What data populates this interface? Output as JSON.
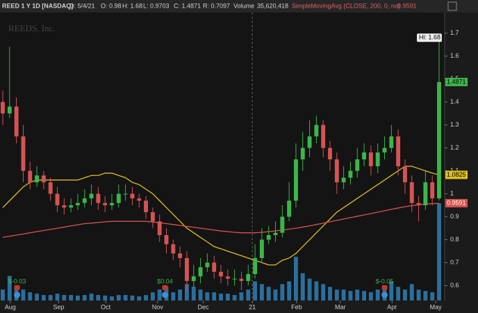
{
  "header": {
    "symbol": "REED 1 Y 1D [NASDAQ]",
    "date": "D: 5/4/21",
    "open": "O: 0.98",
    "high": "H: 1.68",
    "low": "L: 0.9703",
    "close": "C: 1.4871",
    "range": "R: 0.7097",
    "volume_title": "Volume",
    "volume": "35,620,418",
    "study": "SimpleMovingAvg (CLOSE, 200, 0, no)",
    "study_value": "0.9591"
  },
  "chart_data": {
    "type": "candlestick",
    "watermark": "REEDS, Inc.",
    "x": [
      0,
      1,
      2,
      3,
      4,
      5,
      6,
      7,
      8,
      9,
      10,
      11,
      12,
      13,
      14,
      15,
      16,
      17,
      18,
      19,
      20,
      21,
      22,
      23,
      24,
      25,
      26,
      27,
      28,
      29,
      30,
      31,
      32,
      33,
      34,
      35,
      36,
      37,
      38,
      39,
      40,
      41,
      42,
      43,
      44,
      45,
      46,
      47,
      48,
      49,
      50,
      51,
      52,
      53,
      54,
      55,
      56,
      57,
      58,
      59,
      60,
      61,
      62,
      63,
      64
    ],
    "open": [
      1.4,
      1.35,
      1.38,
      1.25,
      1.1,
      1.05,
      1.08,
      1.05,
      1.0,
      0.95,
      0.94,
      0.95,
      0.96,
      0.98,
      1.0,
      0.96,
      0.95,
      0.96,
      1.0,
      1.0,
      0.98,
      0.97,
      0.92,
      0.88,
      0.82,
      0.78,
      0.74,
      0.72,
      0.62,
      0.64,
      0.68,
      0.7,
      0.66,
      0.64,
      0.63,
      0.63,
      0.62,
      0.65,
      0.72,
      0.8,
      0.82,
      0.83,
      0.9,
      0.97,
      1.15,
      1.2,
      1.25,
      1.3,
      1.2,
      1.15,
      1.05,
      1.07,
      1.1,
      1.15,
      1.18,
      1.12,
      1.18,
      1.2,
      1.25,
      1.12,
      1.05,
      0.96,
      0.95,
      1.05,
      0.98
    ],
    "high": [
      1.45,
      1.64,
      1.42,
      1.3,
      1.14,
      1.12,
      1.1,
      1.07,
      1.03,
      0.98,
      0.98,
      1.0,
      1.02,
      1.04,
      1.03,
      0.99,
      1.0,
      1.04,
      1.04,
      1.03,
      1.0,
      0.99,
      0.94,
      0.91,
      0.85,
      0.8,
      0.77,
      0.75,
      0.69,
      0.72,
      0.74,
      0.73,
      0.69,
      0.67,
      0.67,
      0.66,
      0.69,
      0.78,
      0.85,
      0.86,
      0.88,
      0.95,
      1.05,
      1.22,
      1.27,
      1.32,
      1.34,
      1.32,
      1.23,
      1.18,
      1.12,
      1.14,
      1.2,
      1.22,
      1.21,
      1.22,
      1.25,
      1.3,
      1.28,
      1.15,
      1.08,
      0.99,
      1.1,
      1.08,
      1.68
    ],
    "low": [
      1.3,
      1.33,
      1.22,
      1.05,
      1.02,
      1.03,
      1.02,
      0.97,
      0.92,
      0.91,
      0.92,
      0.93,
      0.94,
      0.95,
      0.93,
      0.92,
      0.93,
      0.94,
      0.97,
      0.95,
      0.94,
      0.89,
      0.85,
      0.79,
      0.74,
      0.71,
      0.68,
      0.58,
      0.59,
      0.61,
      0.66,
      0.63,
      0.61,
      0.6,
      0.6,
      0.58,
      0.6,
      0.63,
      0.7,
      0.78,
      0.79,
      0.81,
      0.88,
      0.94,
      1.1,
      1.16,
      1.22,
      1.16,
      1.1,
      1.0,
      1.02,
      1.04,
      1.07,
      1.12,
      1.08,
      1.09,
      1.15,
      1.18,
      1.08,
      1.0,
      0.92,
      0.88,
      0.93,
      0.95,
      0.9703
    ],
    "close": [
      1.35,
      1.38,
      1.25,
      1.1,
      1.05,
      1.08,
      1.05,
      1.0,
      0.95,
      0.94,
      0.95,
      0.96,
      0.98,
      1.0,
      0.96,
      0.95,
      0.96,
      1.0,
      1.0,
      0.98,
      0.97,
      0.92,
      0.88,
      0.82,
      0.78,
      0.74,
      0.72,
      0.62,
      0.64,
      0.68,
      0.7,
      0.66,
      0.64,
      0.63,
      0.63,
      0.62,
      0.65,
      0.72,
      0.8,
      0.82,
      0.83,
      0.9,
      0.97,
      1.15,
      1.2,
      1.25,
      1.3,
      1.2,
      1.15,
      1.05,
      1.07,
      1.1,
      1.15,
      1.18,
      1.12,
      1.18,
      1.2,
      1.25,
      1.12,
      1.05,
      0.96,
      0.95,
      1.05,
      0.98,
      1.4871
    ],
    "up_color": "#3cb64a",
    "down_color": "#d65353",
    "volume": [
      4000000,
      9000000,
      5000000,
      4000000,
      3000000,
      2500000,
      2000000,
      2000000,
      2500000,
      2000000,
      2000000,
      1800000,
      2000000,
      2500000,
      2000000,
      1800000,
      1500000,
      2000000,
      2000000,
      1800000,
      1500000,
      2000000,
      3000000,
      4000000,
      5000000,
      3000000,
      4000000,
      6000000,
      5000000,
      4000000,
      3000000,
      3000000,
      2500000,
      2500000,
      2000000,
      3000000,
      4000000,
      7000000,
      6000000,
      5000000,
      4000000,
      6000000,
      7000000,
      16000000,
      10000000,
      8000000,
      7000000,
      6000000,
      5000000,
      4000000,
      4000000,
      3500000,
      4000000,
      3500000,
      3000000,
      4000000,
      5000000,
      7000000,
      5000000,
      4000000,
      6000000,
      4000000,
      3500000,
      3000000,
      35620418
    ],
    "volume_color": "#2b6f9c",
    "volume_ylim": [
      0,
      40000000
    ],
    "series": [
      {
        "color": "#e0c020",
        "values": [
          0.94,
          0.97,
          1.0,
          1.03,
          1.05,
          1.06,
          1.06,
          1.06,
          1.06,
          1.06,
          1.06,
          1.06,
          1.07,
          1.08,
          1.08,
          1.09,
          1.09,
          1.08,
          1.07,
          1.05,
          1.04,
          1.02,
          1.0,
          0.97,
          0.94,
          0.91,
          0.88,
          0.85,
          0.83,
          0.81,
          0.79,
          0.77,
          0.76,
          0.75,
          0.74,
          0.73,
          0.72,
          0.71,
          0.7,
          0.69,
          0.69,
          0.71,
          0.72,
          0.74,
          0.77,
          0.8,
          0.83,
          0.86,
          0.89,
          0.92,
          0.94,
          0.96,
          0.98,
          1.0,
          1.02,
          1.04,
          1.06,
          1.08,
          1.1,
          1.12,
          1.12,
          1.11,
          1.1,
          1.09,
          1.0825
        ]
      },
      {
        "color": "#d9534f",
        "values": [
          0.81,
          0.815,
          0.82,
          0.825,
          0.83,
          0.835,
          0.84,
          0.845,
          0.85,
          0.855,
          0.86,
          0.865,
          0.87,
          0.872,
          0.875,
          0.878,
          0.88,
          0.88,
          0.88,
          0.88,
          0.88,
          0.88,
          0.877,
          0.874,
          0.87,
          0.866,
          0.862,
          0.858,
          0.854,
          0.85,
          0.846,
          0.842,
          0.838,
          0.835,
          0.832,
          0.83,
          0.83,
          0.83,
          0.832,
          0.835,
          0.838,
          0.842,
          0.846,
          0.85,
          0.855,
          0.86,
          0.866,
          0.872,
          0.878,
          0.884,
          0.89,
          0.896,
          0.902,
          0.908,
          0.914,
          0.92,
          0.926,
          0.932,
          0.938,
          0.944,
          0.948,
          0.952,
          0.955,
          0.957,
          0.9591
        ]
      }
    ],
    "hi_label": "Hi: 1.68",
    "earnings": [
      {
        "x": 2.1,
        "label": "$-0.03"
      },
      {
        "x": 23.8,
        "label": "$0.04"
      },
      {
        "x": 56,
        "label": "$-0.05"
      }
    ],
    "xlim": [
      0,
      64
    ],
    "xticks": [
      {
        "value": 1.1,
        "label": "Aug"
      },
      {
        "value": 8.2,
        "label": "Sep"
      },
      {
        "value": 15.1,
        "label": "Oct"
      },
      {
        "value": 22.7,
        "label": "Nov"
      },
      {
        "value": 29.4,
        "label": "Dec"
      },
      {
        "value": 36.6,
        "label": "21"
      },
      {
        "value": 43.1,
        "label": "Feb"
      },
      {
        "value": 49.5,
        "label": "Mar"
      },
      {
        "value": 57.1,
        "label": "Apr"
      },
      {
        "value": 63.5,
        "label": "May"
      }
    ],
    "year_break": 36.6,
    "ylim": [
      0.535,
      1.79
    ],
    "yticks": [
      0.6,
      0.7,
      0.8,
      0.9,
      1,
      1.1,
      1.2,
      1.3,
      1.4,
      1.5,
      1.6,
      1.7
    ]
  }
}
